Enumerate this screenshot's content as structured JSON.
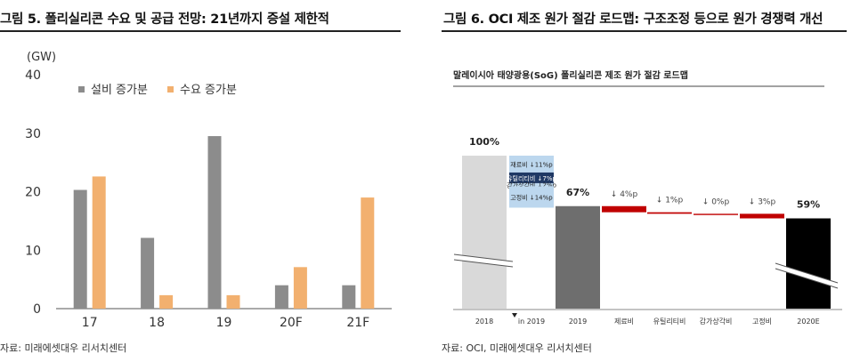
{
  "figures": [
    {
      "title": "그림 5. 폴리실리콘 수요 및 공급 전망: 21년까지 증설 제한적",
      "source": "자료: 미래에셋대우 리서치센터"
    },
    {
      "title": "그림 6. OCI 제조 원가 절감 로드맵: 구조조정 등으로 원가 경쟁력 개선",
      "source": "자료: OCI, 미래에셋대우 리서치센터"
    }
  ],
  "chart_data": [
    {
      "type": "bar",
      "title": "",
      "ylabel": "(GW)",
      "xlabel": "",
      "ylim": [
        0,
        40
      ],
      "yticks": [
        0,
        10,
        20,
        30,
        40
      ],
      "categories": [
        "17",
        "18",
        "19",
        "20F",
        "21F"
      ],
      "series": [
        {
          "name": "설비 증가분",
          "color": "#8c8c8c",
          "values": [
            20.3,
            12.1,
            29.5,
            4.0,
            4.0
          ]
        },
        {
          "name": "수요 증가분",
          "color": "#f2b06f",
          "values": [
            22.6,
            2.3,
            2.3,
            7.1,
            19.0
          ]
        }
      ],
      "legend": "top-left",
      "grid": false
    },
    {
      "type": "bar",
      "subtitle": "말레이시아 태양광용(SoG) 폴리실리콘 제조 원가 절감 로드맵",
      "categories": [
        "2018",
        "in 2019",
        "2019",
        "제료비",
        "유틸리티비",
        "감가상각비",
        "고정비",
        "2020E"
      ],
      "bars": [
        {
          "category": "2018",
          "value": 100,
          "label": "100%",
          "kind": "total",
          "color": "#d9d9d9"
        },
        {
          "category": "2019",
          "value": 67,
          "label": "67%",
          "kind": "total",
          "color": "#6e6e6e"
        },
        {
          "category": "제료비",
          "value": -4,
          "label": "↓ 4%p",
          "kind": "decrease",
          "color": "#c00000"
        },
        {
          "category": "유틸리티비",
          "value": -1,
          "label": "↓ 1%p",
          "kind": "decrease",
          "color": "#c00000"
        },
        {
          "category": "감가상각비",
          "value": 0,
          "label": "↓ 0%p",
          "kind": "decrease",
          "color": "#c00000"
        },
        {
          "category": "고정비",
          "value": -3,
          "label": "↓ 3%p",
          "kind": "decrease",
          "color": "#c00000"
        },
        {
          "category": "2020E",
          "value": 59,
          "label": "59%",
          "kind": "total",
          "color": "#000000"
        }
      ],
      "in_2019_breakdown": [
        {
          "label": "재료비 ↓11%p",
          "value": 11,
          "color": "#bcd7ee"
        },
        {
          "label": "유틸리티비 ↓7%p",
          "value": 7,
          "color": "#1f3864"
        },
        {
          "label": "감가상각비 ↓2%p",
          "value": 2,
          "color": "#bcd7ee"
        },
        {
          "label": "고정비 ↓14%p",
          "value": 14,
          "color": "#bcd7ee"
        }
      ],
      "axis_break": true
    }
  ]
}
